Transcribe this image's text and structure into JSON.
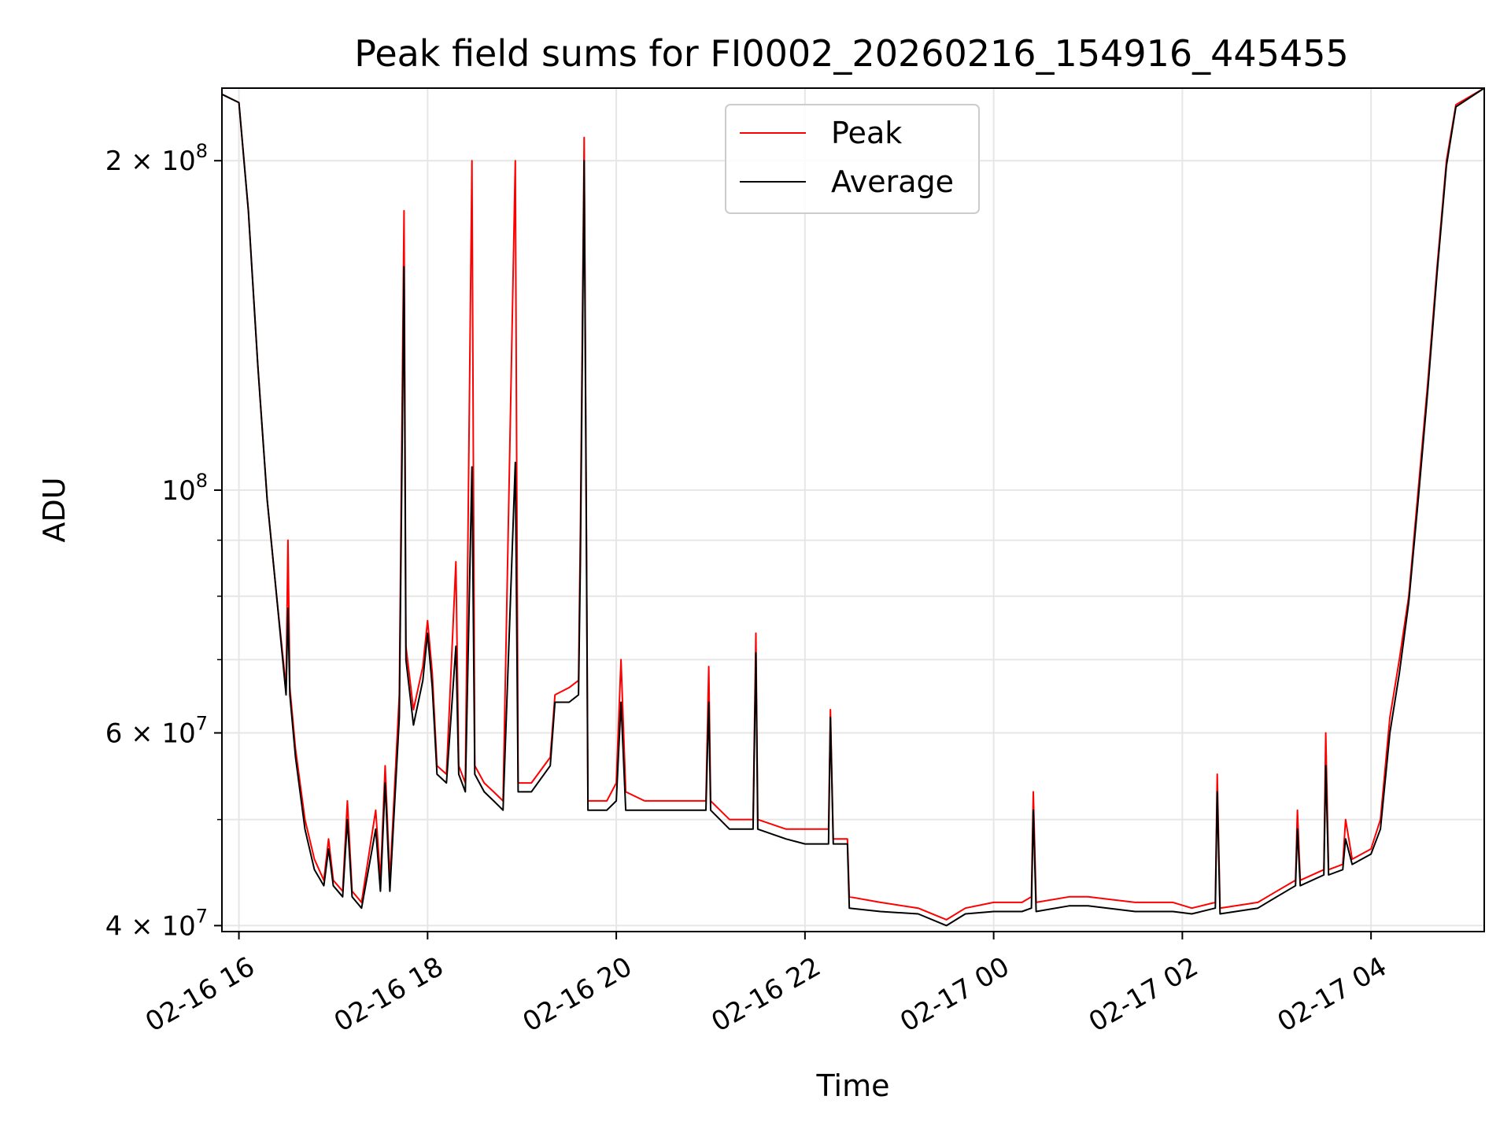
{
  "chart_data": {
    "type": "line",
    "title": "Peak field sums for FI0002_20260216_154916_445455",
    "xlabel": "Time",
    "ylabel": "ADU",
    "y_scale": "log",
    "ylim": [
      39500000,
      233000000
    ],
    "xlim_hours": [
      -0.18,
      13.2
    ],
    "grid": true,
    "legend_position": "top-center",
    "x_ticks": [
      {
        "h": 0,
        "label": "02-16 16"
      },
      {
        "h": 2,
        "label": "02-16 18"
      },
      {
        "h": 4,
        "label": "02-16 20"
      },
      {
        "h": 6,
        "label": "02-16 22"
      },
      {
        "h": 8,
        "label": "02-17 00"
      },
      {
        "h": 10,
        "label": "02-17 02"
      },
      {
        "h": 12,
        "label": "02-17 04"
      }
    ],
    "y_ticks": [
      {
        "v": 40000000,
        "base": "4 × 10",
        "exp": "7"
      },
      {
        "v": 60000000,
        "base": "6 × 10",
        "exp": "7"
      },
      {
        "v": 100000000,
        "base": "10",
        "exp": "8"
      },
      {
        "v": 200000000,
        "base": "2 × 10",
        "exp": "8"
      }
    ],
    "y_minor_ticks": [
      50000000,
      70000000,
      80000000,
      90000000
    ],
    "series": [
      {
        "name": "Peak",
        "color": "#ff0000",
        "points": [
          [
            -0.18,
            230000000
          ],
          [
            0.0,
            226000000
          ],
          [
            0.1,
            180000000
          ],
          [
            0.2,
            130000000
          ],
          [
            0.3,
            98000000
          ],
          [
            0.4,
            80000000
          ],
          [
            0.5,
            66000000
          ],
          [
            0.52,
            90000000
          ],
          [
            0.54,
            66000000
          ],
          [
            0.6,
            58000000
          ],
          [
            0.7,
            50000000
          ],
          [
            0.8,
            46000000
          ],
          [
            0.9,
            44000000
          ],
          [
            0.95,
            48000000
          ],
          [
            1.0,
            44000000
          ],
          [
            1.1,
            43000000
          ],
          [
            1.15,
            52000000
          ],
          [
            1.2,
            43000000
          ],
          [
            1.3,
            42000000
          ],
          [
            1.45,
            51000000
          ],
          [
            1.5,
            44000000
          ],
          [
            1.55,
            56000000
          ],
          [
            1.6,
            44000000
          ],
          [
            1.7,
            65000000
          ],
          [
            1.75,
            180000000
          ],
          [
            1.77,
            72000000
          ],
          [
            1.85,
            63000000
          ],
          [
            1.95,
            69000000
          ],
          [
            2.0,
            76000000
          ],
          [
            2.05,
            68000000
          ],
          [
            2.1,
            56000000
          ],
          [
            2.2,
            55000000
          ],
          [
            2.3,
            86000000
          ],
          [
            2.33,
            56000000
          ],
          [
            2.4,
            54000000
          ],
          [
            2.47,
            200000000
          ],
          [
            2.5,
            56000000
          ],
          [
            2.6,
            54000000
          ],
          [
            2.7,
            53000000
          ],
          [
            2.8,
            52000000
          ],
          [
            2.93,
            200000000
          ],
          [
            2.96,
            54000000
          ],
          [
            3.1,
            54000000
          ],
          [
            3.3,
            57000000
          ],
          [
            3.35,
            65000000
          ],
          [
            3.5,
            66000000
          ],
          [
            3.6,
            67000000
          ],
          [
            3.62,
            92000000
          ],
          [
            3.66,
            210000000
          ],
          [
            3.7,
            52000000
          ],
          [
            3.9,
            52000000
          ],
          [
            4.0,
            54000000
          ],
          [
            4.05,
            70000000
          ],
          [
            4.1,
            53000000
          ],
          [
            4.3,
            52000000
          ],
          [
            4.5,
            52000000
          ],
          [
            4.6,
            52000000
          ],
          [
            4.7,
            52000000
          ],
          [
            4.95,
            52000000
          ],
          [
            4.98,
            69000000
          ],
          [
            5.0,
            52000000
          ],
          [
            5.2,
            50000000
          ],
          [
            5.45,
            50000000
          ],
          [
            5.48,
            74000000
          ],
          [
            5.5,
            50000000
          ],
          [
            5.8,
            49000000
          ],
          [
            6.0,
            49000000
          ],
          [
            6.25,
            49000000
          ],
          [
            6.27,
            63000000
          ],
          [
            6.3,
            48000000
          ],
          [
            6.45,
            48000000
          ],
          [
            6.47,
            42500000
          ],
          [
            6.8,
            42000000
          ],
          [
            7.2,
            41500000
          ],
          [
            7.5,
            40500000
          ],
          [
            7.7,
            41500000
          ],
          [
            8.0,
            42000000
          ],
          [
            8.3,
            42000000
          ],
          [
            8.4,
            42500000
          ],
          [
            8.42,
            53000000
          ],
          [
            8.45,
            42000000
          ],
          [
            8.8,
            42500000
          ],
          [
            9.0,
            42500000
          ],
          [
            9.5,
            42000000
          ],
          [
            9.9,
            42000000
          ],
          [
            10.1,
            41500000
          ],
          [
            10.35,
            42000000
          ],
          [
            10.37,
            55000000
          ],
          [
            10.4,
            41500000
          ],
          [
            10.8,
            42000000
          ],
          [
            11.0,
            43000000
          ],
          [
            11.2,
            44000000
          ],
          [
            11.22,
            51000000
          ],
          [
            11.25,
            44000000
          ],
          [
            11.5,
            45000000
          ],
          [
            11.52,
            60000000
          ],
          [
            11.55,
            45000000
          ],
          [
            11.7,
            45500000
          ],
          [
            11.73,
            50000000
          ],
          [
            11.8,
            46000000
          ],
          [
            12.0,
            47000000
          ],
          [
            12.1,
            50000000
          ],
          [
            12.2,
            62000000
          ],
          [
            12.3,
            70000000
          ],
          [
            12.4,
            80000000
          ],
          [
            12.5,
            100000000
          ],
          [
            12.6,
            125000000
          ],
          [
            12.7,
            160000000
          ],
          [
            12.8,
            200000000
          ],
          [
            12.9,
            225000000
          ],
          [
            13.2,
            233000000
          ]
        ]
      },
      {
        "name": "Average",
        "color": "#000000",
        "points": [
          [
            -0.18,
            230000000
          ],
          [
            0.0,
            226000000
          ],
          [
            0.1,
            180000000
          ],
          [
            0.2,
            130000000
          ],
          [
            0.3,
            98000000
          ],
          [
            0.4,
            80000000
          ],
          [
            0.5,
            65000000
          ],
          [
            0.52,
            78000000
          ],
          [
            0.54,
            65000000
          ],
          [
            0.6,
            57000000
          ],
          [
            0.7,
            49000000
          ],
          [
            0.8,
            45000000
          ],
          [
            0.9,
            43500000
          ],
          [
            0.95,
            47000000
          ],
          [
            1.0,
            43500000
          ],
          [
            1.1,
            42500000
          ],
          [
            1.15,
            50000000
          ],
          [
            1.2,
            42500000
          ],
          [
            1.3,
            41500000
          ],
          [
            1.45,
            49000000
          ],
          [
            1.5,
            43000000
          ],
          [
            1.55,
            54000000
          ],
          [
            1.6,
            43000000
          ],
          [
            1.7,
            62000000
          ],
          [
            1.75,
            160000000
          ],
          [
            1.77,
            70000000
          ],
          [
            1.85,
            61000000
          ],
          [
            1.95,
            67000000
          ],
          [
            2.0,
            74000000
          ],
          [
            2.05,
            66000000
          ],
          [
            2.1,
            55000000
          ],
          [
            2.2,
            54000000
          ],
          [
            2.3,
            72000000
          ],
          [
            2.33,
            55000000
          ],
          [
            2.4,
            53000000
          ],
          [
            2.47,
            105000000
          ],
          [
            2.5,
            55000000
          ],
          [
            2.6,
            53000000
          ],
          [
            2.7,
            52000000
          ],
          [
            2.8,
            51000000
          ],
          [
            2.93,
            106000000
          ],
          [
            2.96,
            53000000
          ],
          [
            3.1,
            53000000
          ],
          [
            3.3,
            56000000
          ],
          [
            3.35,
            64000000
          ],
          [
            3.5,
            64000000
          ],
          [
            3.6,
            65000000
          ],
          [
            3.62,
            86000000
          ],
          [
            3.66,
            200000000
          ],
          [
            3.7,
            51000000
          ],
          [
            3.9,
            51000000
          ],
          [
            4.0,
            52000000
          ],
          [
            4.05,
            64000000
          ],
          [
            4.1,
            51000000
          ],
          [
            4.3,
            51000000
          ],
          [
            4.5,
            51000000
          ],
          [
            4.6,
            51000000
          ],
          [
            4.7,
            51000000
          ],
          [
            4.95,
            51000000
          ],
          [
            4.98,
            64000000
          ],
          [
            5.0,
            51000000
          ],
          [
            5.2,
            49000000
          ],
          [
            5.45,
            49000000
          ],
          [
            5.48,
            71000000
          ],
          [
            5.5,
            49000000
          ],
          [
            5.8,
            48000000
          ],
          [
            6.0,
            47500000
          ],
          [
            6.25,
            47500000
          ],
          [
            6.27,
            62000000
          ],
          [
            6.3,
            47500000
          ],
          [
            6.45,
            47500000
          ],
          [
            6.47,
            41500000
          ],
          [
            6.8,
            41200000
          ],
          [
            7.2,
            41000000
          ],
          [
            7.5,
            40000000
          ],
          [
            7.7,
            41000000
          ],
          [
            8.0,
            41200000
          ],
          [
            8.3,
            41200000
          ],
          [
            8.4,
            41500000
          ],
          [
            8.42,
            51000000
          ],
          [
            8.45,
            41200000
          ],
          [
            8.8,
            41700000
          ],
          [
            9.0,
            41700000
          ],
          [
            9.5,
            41200000
          ],
          [
            9.9,
            41200000
          ],
          [
            10.1,
            41000000
          ],
          [
            10.35,
            41500000
          ],
          [
            10.37,
            53000000
          ],
          [
            10.4,
            41000000
          ],
          [
            10.8,
            41500000
          ],
          [
            11.0,
            42500000
          ],
          [
            11.2,
            43500000
          ],
          [
            11.22,
            49000000
          ],
          [
            11.25,
            43500000
          ],
          [
            11.5,
            44500000
          ],
          [
            11.52,
            56000000
          ],
          [
            11.55,
            44500000
          ],
          [
            11.7,
            45000000
          ],
          [
            11.73,
            48000000
          ],
          [
            11.8,
            45500000
          ],
          [
            12.0,
            46500000
          ],
          [
            12.1,
            49000000
          ],
          [
            12.2,
            60000000
          ],
          [
            12.3,
            68000000
          ],
          [
            12.4,
            79000000
          ],
          [
            12.5,
            98000000
          ],
          [
            12.6,
            123000000
          ],
          [
            12.7,
            158000000
          ],
          [
            12.8,
            198000000
          ],
          [
            12.9,
            224000000
          ],
          [
            13.2,
            233000000
          ]
        ]
      }
    ]
  }
}
